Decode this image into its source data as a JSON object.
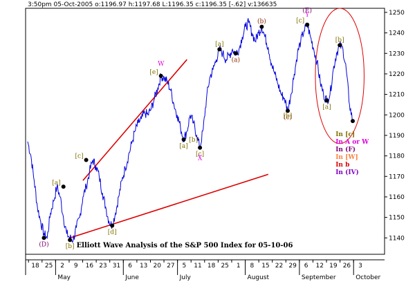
{
  "chart_data": {
    "type": "line",
    "header": "3:50pm 05-Oct-2005  o:1196.97 h:1197.68 L:1196.35 c:1196.35 [-.62] v:136635",
    "title": "Elliott Wave Analysis of the S&P 500 Index for 05-10-06",
    "ylim": [
      1132,
      1252
    ],
    "y_ticks": [
      1140,
      1150,
      1160,
      1170,
      1180,
      1190,
      1200,
      1210,
      1220,
      1230,
      1240,
      1250
    ],
    "x_day_ticks": [
      "18",
      "25",
      "2",
      "9",
      "16",
      "23",
      "31",
      "6",
      "13",
      "20",
      "27",
      "5",
      "11",
      "18",
      "25",
      "1",
      "8",
      "15",
      "22",
      "29",
      "6",
      "12",
      "19",
      "26",
      "3"
    ],
    "x_month_labels": [
      "May",
      "June",
      "July",
      "August",
      "September",
      "October"
    ],
    "series": [
      {
        "color": "#0000dd",
        "points": [
          [
            0,
            1187
          ],
          [
            1,
            1180
          ],
          [
            2,
            1168
          ],
          [
            3,
            1155
          ],
          [
            4,
            1148
          ],
          [
            5,
            1142
          ],
          [
            6,
            1140
          ],
          [
            7,
            1152
          ],
          [
            8,
            1158
          ],
          [
            9,
            1165
          ],
          [
            10,
            1160
          ],
          [
            11,
            1150
          ],
          [
            12,
            1142
          ],
          [
            13,
            1140
          ],
          [
            14,
            1139
          ],
          [
            15,
            1145
          ],
          [
            16,
            1150
          ],
          [
            17,
            1160
          ],
          [
            18,
            1165
          ],
          [
            19,
            1172
          ],
          [
            20,
            1178
          ],
          [
            21,
            1175
          ],
          [
            22,
            1170
          ],
          [
            23,
            1162
          ],
          [
            24,
            1155
          ],
          [
            25,
            1148
          ],
          [
            26,
            1146
          ],
          [
            27,
            1152
          ],
          [
            28,
            1160
          ],
          [
            29,
            1168
          ],
          [
            30,
            1174
          ],
          [
            31,
            1180
          ],
          [
            32,
            1186
          ],
          [
            33,
            1192
          ],
          [
            34,
            1196
          ],
          [
            35,
            1198
          ],
          [
            36,
            1201
          ],
          [
            37,
            1200
          ],
          [
            38,
            1203
          ],
          [
            39,
            1208
          ],
          [
            40,
            1213
          ],
          [
            41,
            1219
          ],
          [
            42,
            1218
          ],
          [
            43,
            1216
          ],
          [
            44,
            1212
          ],
          [
            45,
            1205
          ],
          [
            46,
            1200
          ],
          [
            47,
            1194
          ],
          [
            48,
            1188
          ],
          [
            49,
            1192
          ],
          [
            50,
            1200
          ],
          [
            51,
            1196
          ],
          [
            52,
            1190
          ],
          [
            53,
            1184
          ],
          [
            54,
            1193
          ],
          [
            55,
            1208
          ],
          [
            56,
            1218
          ],
          [
            57,
            1222
          ],
          [
            58,
            1227
          ],
          [
            59,
            1232
          ],
          [
            60,
            1230
          ],
          [
            61,
            1227
          ],
          [
            62,
            1229
          ],
          [
            63,
            1232
          ],
          [
            64,
            1230
          ],
          [
            65,
            1232
          ],
          [
            66,
            1238
          ],
          [
            67,
            1243
          ],
          [
            68,
            1245
          ],
          [
            69,
            1240
          ],
          [
            70,
            1236
          ],
          [
            71,
            1240
          ],
          [
            72,
            1243
          ],
          [
            73,
            1238
          ],
          [
            74,
            1233
          ],
          [
            75,
            1225
          ],
          [
            76,
            1220
          ],
          [
            77,
            1215
          ],
          [
            78,
            1210
          ],
          [
            79,
            1208
          ],
          [
            80,
            1202
          ],
          [
            81,
            1210
          ],
          [
            82,
            1220
          ],
          [
            83,
            1230
          ],
          [
            84,
            1236
          ],
          [
            85,
            1241
          ],
          [
            86,
            1244
          ],
          [
            87,
            1238
          ],
          [
            88,
            1232
          ],
          [
            89,
            1226
          ],
          [
            90,
            1216
          ],
          [
            91,
            1210
          ],
          [
            92,
            1207
          ],
          [
            93,
            1210
          ],
          [
            94,
            1222
          ],
          [
            95,
            1230
          ],
          [
            96,
            1234
          ],
          [
            97,
            1232
          ],
          [
            98,
            1222
          ],
          [
            99,
            1205
          ],
          [
            100,
            1197
          ]
        ]
      }
    ],
    "trendlines": [
      {
        "color": "#dd0000",
        "from": [
          17,
          1168
        ],
        "to": [
          49,
          1227
        ]
      },
      {
        "color": "#dd0000",
        "from": [
          13,
          1140
        ],
        "to": [
          74,
          1171
        ]
      }
    ],
    "pivots": [
      {
        "x": 5,
        "y": 1140,
        "label": "(D)",
        "pos": "below",
        "color": "#7a0070"
      },
      {
        "x": 11,
        "y": 1165,
        "label": "[a]",
        "pos": "left",
        "color": "#807000"
      },
      {
        "x": 13,
        "y": 1139,
        "label": "[b]",
        "pos": "below",
        "color": "#807000"
      },
      {
        "x": 18,
        "y": 1178,
        "label": "[c]",
        "pos": "left",
        "color": "#807000"
      },
      {
        "x": 26,
        "y": 1146,
        "label": "[d]",
        "pos": "below",
        "color": "#807000"
      },
      {
        "x": 41,
        "y": 1219,
        "label": "[e]",
        "pos": "left",
        "color": "#807000"
      },
      {
        "x": 48,
        "y": 1188,
        "label": "[a]",
        "pos": "below",
        "color": "#807000"
      },
      {
        "x": 53,
        "y": 1184,
        "label": "[c]",
        "pos": "below",
        "color": "#807000"
      },
      {
        "x": 59,
        "y": 1232,
        "label": "[a]",
        "pos": "above",
        "color": "#807000"
      },
      {
        "x": 64,
        "y": 1230,
        "label": "(a)",
        "pos": "below",
        "color": "#8b2500"
      },
      {
        "x": 72,
        "y": 1243,
        "label": "(b)",
        "pos": "above",
        "color": "#8b2500"
      },
      {
        "x": 80,
        "y": 1202,
        "label": "(c)",
        "pos": "below",
        "color": "#8b2500"
      },
      {
        "x": 86,
        "y": 1244,
        "label": "[c]",
        "pos": "left",
        "color": "#807000"
      },
      {
        "x": 92,
        "y": 1207,
        "label": "[a]",
        "pos": "below",
        "color": "#807000"
      },
      {
        "x": 96,
        "y": 1234,
        "label": "[b]",
        "pos": "above",
        "color": "#807000"
      },
      {
        "x": 100,
        "y": 1197,
        "label": "",
        "pos": "none",
        "color": "#000000"
      }
    ],
    "annotations": [
      {
        "x": 41,
        "y": 1224,
        "text": "W",
        "color": "#dd00dd"
      },
      {
        "x": 51,
        "y": 1187,
        "text": "[b]",
        "color": "#807000"
      },
      {
        "x": 53,
        "y": 1178,
        "text": "X",
        "color": "#dd00dd"
      },
      {
        "x": 80,
        "y": 1198.5,
        "text": "[b]",
        "color": "#807000"
      },
      {
        "x": 86,
        "y": 1250,
        "text": "(E)",
        "color": "#7a0070"
      },
      {
        "x": 86,
        "y": 1248,
        "text": "Y",
        "color": "#dd00dd"
      }
    ],
    "legend_stack": [
      {
        "text": "In [c]",
        "color": "#807000"
      },
      {
        "text": "In A or W",
        "color": "#dd00dd"
      },
      {
        "text": "In (F)",
        "color": "#7a0070"
      },
      {
        "text": "In [W]",
        "color": "#ff8040"
      },
      {
        "text": "In b",
        "color": "#dd0000"
      },
      {
        "text": "In (IV)",
        "color": "#8000c0"
      }
    ],
    "ellipse": {
      "cx": 96,
      "cy": 1219,
      "rx_units": 7.5,
      "ry_units": 33,
      "color": "#dd0000"
    }
  }
}
